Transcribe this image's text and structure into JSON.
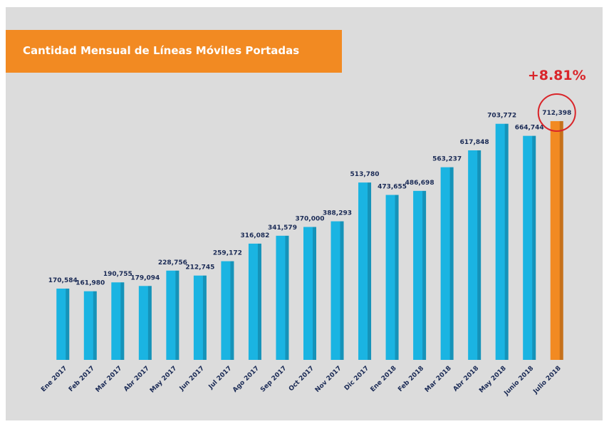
{
  "chart_data": {
    "type": "bar",
    "title": "Cantidad Mensual de Líneas Móviles Portadas",
    "categories": [
      "Ene 2017",
      "Feb 2017",
      "Mar 2017",
      "Abr 2017",
      "May 2017",
      "Jun 2017",
      "Jul 2017",
      "Ago 2017",
      "Sep 2017",
      "Oct 2017",
      "Nov 2017",
      "Dic 2017",
      "Ene 2018",
      "Feb 2018",
      "Mar 2018",
      "Abr 2018",
      "May 2018",
      "Junio 2018",
      "Julio 2018"
    ],
    "values": [
      170584,
      161980,
      190755,
      179094,
      228756,
      212745,
      259172,
      316082,
      341579,
      370000,
      388293,
      513780,
      473655,
      486698,
      563237,
      617848,
      703772,
      664744,
      712398
    ],
    "value_labels": [
      "170,584",
      "161,980",
      "190,755",
      "179,094",
      "228,756",
      "212,745",
      "259,172",
      "316,082",
      "341,579",
      "370,000",
      "388,293",
      "513,780",
      "473,655",
      "486,698",
      "563,237",
      "617,848",
      "703,772",
      "664,744",
      "712,398"
    ],
    "colors": [
      "#1ab4e2",
      "#1ab4e2",
      "#1ab4e2",
      "#1ab4e2",
      "#1ab4e2",
      "#1ab4e2",
      "#1ab4e2",
      "#1ab4e2",
      "#1ab4e2",
      "#1ab4e2",
      "#1ab4e2",
      "#1ab4e2",
      "#1ab4e2",
      "#1ab4e2",
      "#1ab4e2",
      "#1ab4e2",
      "#1ab4e2",
      "#1ab4e2",
      "#f28a22"
    ],
    "annotation": "+8.81%",
    "ylim": [
      -60000,
      740000
    ]
  }
}
